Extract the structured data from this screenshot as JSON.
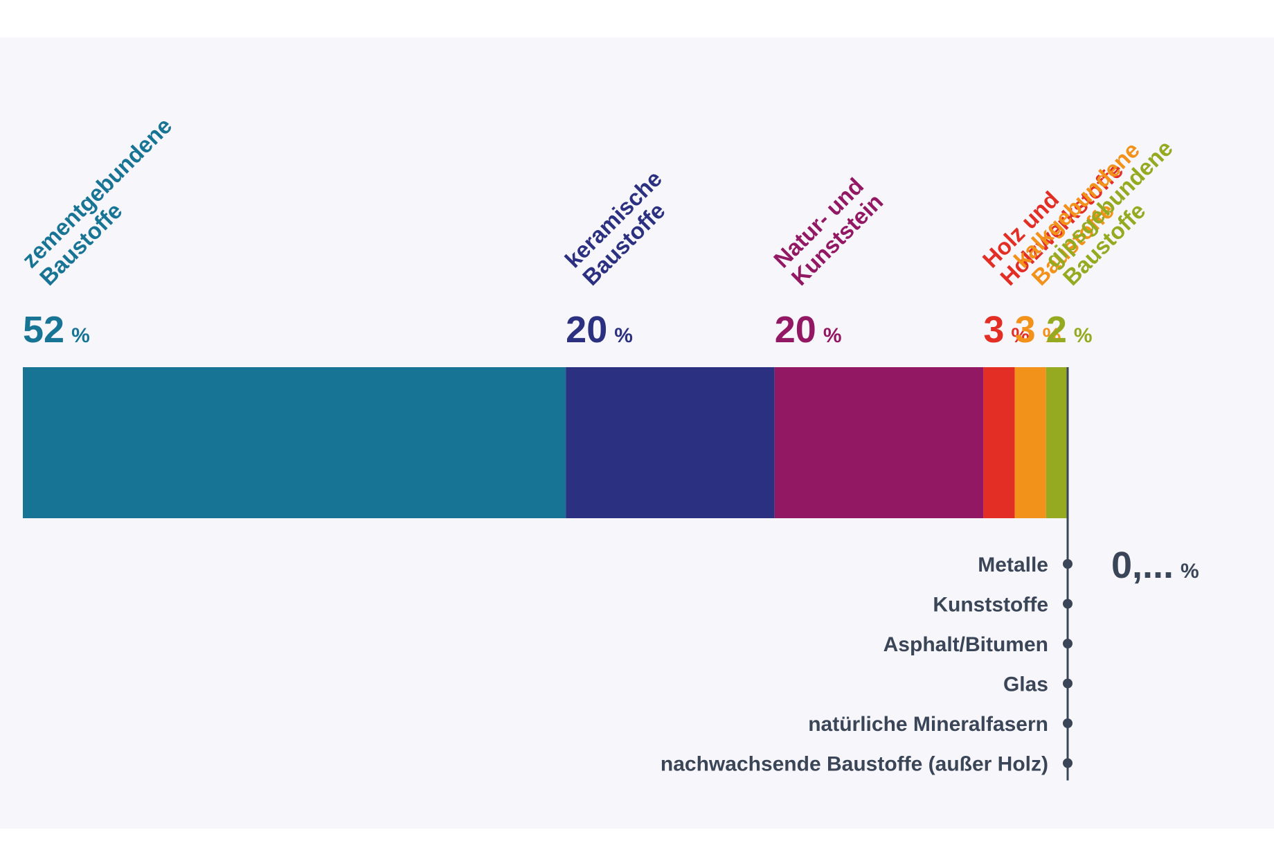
{
  "chart_data": {
    "type": "bar",
    "orientation": "horizontal-stacked",
    "unit": "%",
    "segments": [
      {
        "label": [
          "zementgebundene",
          "Baustoffe"
        ],
        "value": 52,
        "display": "52",
        "color": "#187494"
      },
      {
        "label": [
          "keramische",
          "Baustoffe"
        ],
        "value": 20,
        "display": "20",
        "color": "#2b3080"
      },
      {
        "label": [
          "Natur- und",
          "Kunststein"
        ],
        "value": 20,
        "display": "20",
        "color": "#921863"
      },
      {
        "label": [
          "Holz und",
          "Holzwerkstoffe"
        ],
        "value": 3,
        "display": "3",
        "color": "#e32e25"
      },
      {
        "label": [
          "kalkgebundene",
          "Baustoffe"
        ],
        "value": 3,
        "display": "3",
        "color": "#f2921b"
      },
      {
        "label": [
          "gipsgebundene",
          "Baustoffe"
        ],
        "value": 2,
        "display": "2",
        "color": "#95aa20"
      }
    ],
    "minor": {
      "value_display": "0,...",
      "unit": "%",
      "color": "#3a4657",
      "items": [
        "Metalle",
        "Kunststoffe",
        "Asphalt/Bitumen",
        "Glas",
        "natürliche Mineralfasern",
        "nachwachsende Baustoffe (außer Holz)"
      ]
    }
  }
}
